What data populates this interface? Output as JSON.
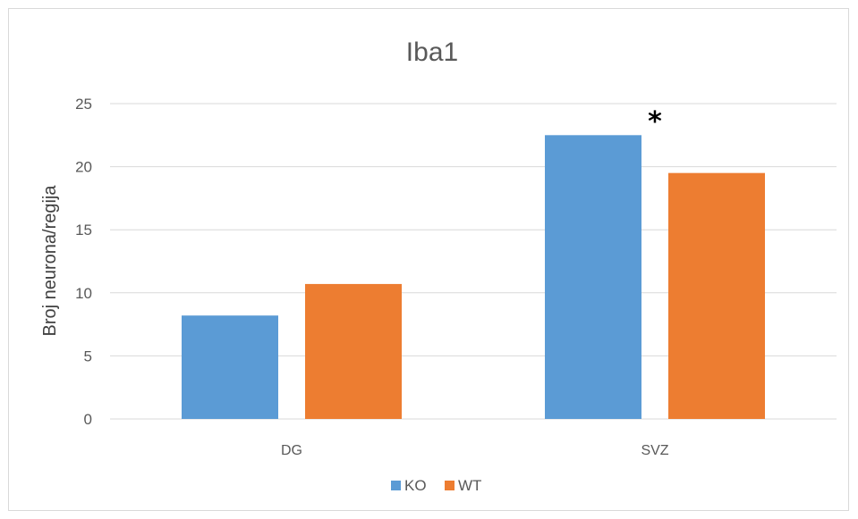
{
  "chart_data": {
    "type": "bar",
    "title": "Iba1",
    "xlabel": "",
    "ylabel": "Broj neurona/regija",
    "categories": [
      "DG",
      "SVZ"
    ],
    "series": [
      {
        "name": "KO",
        "values": [
          8.2,
          22.5
        ],
        "color": "#5b9bd5"
      },
      {
        "name": "WT",
        "values": [
          10.7,
          19.5
        ],
        "color": "#ed7d31"
      }
    ],
    "ylim": [
      0,
      25
    ],
    "yticks": [
      0,
      5,
      10,
      15,
      20,
      25
    ],
    "grid": true,
    "legend": "bottom",
    "annotations": [
      {
        "text": "*",
        "category": "SVZ"
      }
    ]
  }
}
